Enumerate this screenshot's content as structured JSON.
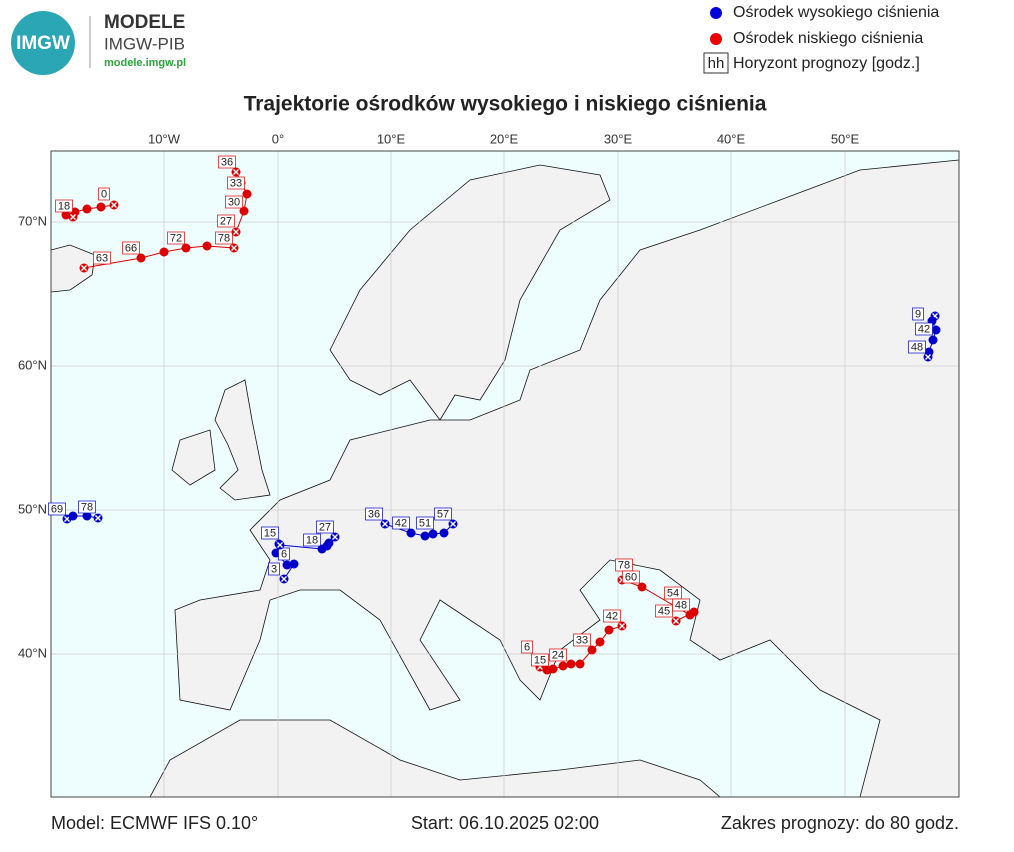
{
  "header": {
    "logo_text": "IMGW",
    "title": "MODELE",
    "subtitle": "IMGW-PIB",
    "url": "modele.imgw.pl"
  },
  "legend": [
    {
      "label": "Ośrodek wysokiego ciśnienia"
    },
    {
      "label": "Ośrodek niskiego ciśnienia"
    },
    {
      "symbol": "hh",
      "label": "Horyzont prognozy [godz.]"
    }
  ],
  "map": {
    "title": "Trajektorie ośrodków wysokiego i niskiego ciśnienia",
    "lon_labels": [
      "10°W",
      "0°",
      "10°E",
      "20°E",
      "30°E",
      "40°E",
      "50°E"
    ],
    "lat_labels": [
      "70°N",
      "60°N",
      "50°N",
      "40°N"
    ],
    "trajectories": [
      {
        "kind": "low",
        "labels": [
          0,
          18
        ]
      },
      {
        "kind": "low",
        "labels": [
          63,
          66,
          72,
          78
        ]
      },
      {
        "kind": "low",
        "labels": [
          27,
          30,
          33,
          36
        ]
      },
      {
        "kind": "high",
        "labels": [
          69,
          78
        ]
      },
      {
        "kind": "high",
        "labels": [
          3,
          6,
          15
        ]
      },
      {
        "kind": "high",
        "labels": [
          18,
          27
        ]
      },
      {
        "kind": "high",
        "labels": [
          36,
          42,
          51,
          57
        ]
      },
      {
        "kind": "high",
        "labels": [
          9,
          42,
          48
        ]
      },
      {
        "kind": "low",
        "labels": [
          6,
          15,
          24,
          33,
          42
        ]
      },
      {
        "kind": "low",
        "labels": [
          78,
          60,
          54,
          45,
          48
        ]
      }
    ]
  },
  "footer": {
    "model": "Model: ECMWF IFS 0.10°",
    "start": "Start: 06.10.2025 02:00",
    "range": "Zakres prognozy: do 80 godz."
  }
}
